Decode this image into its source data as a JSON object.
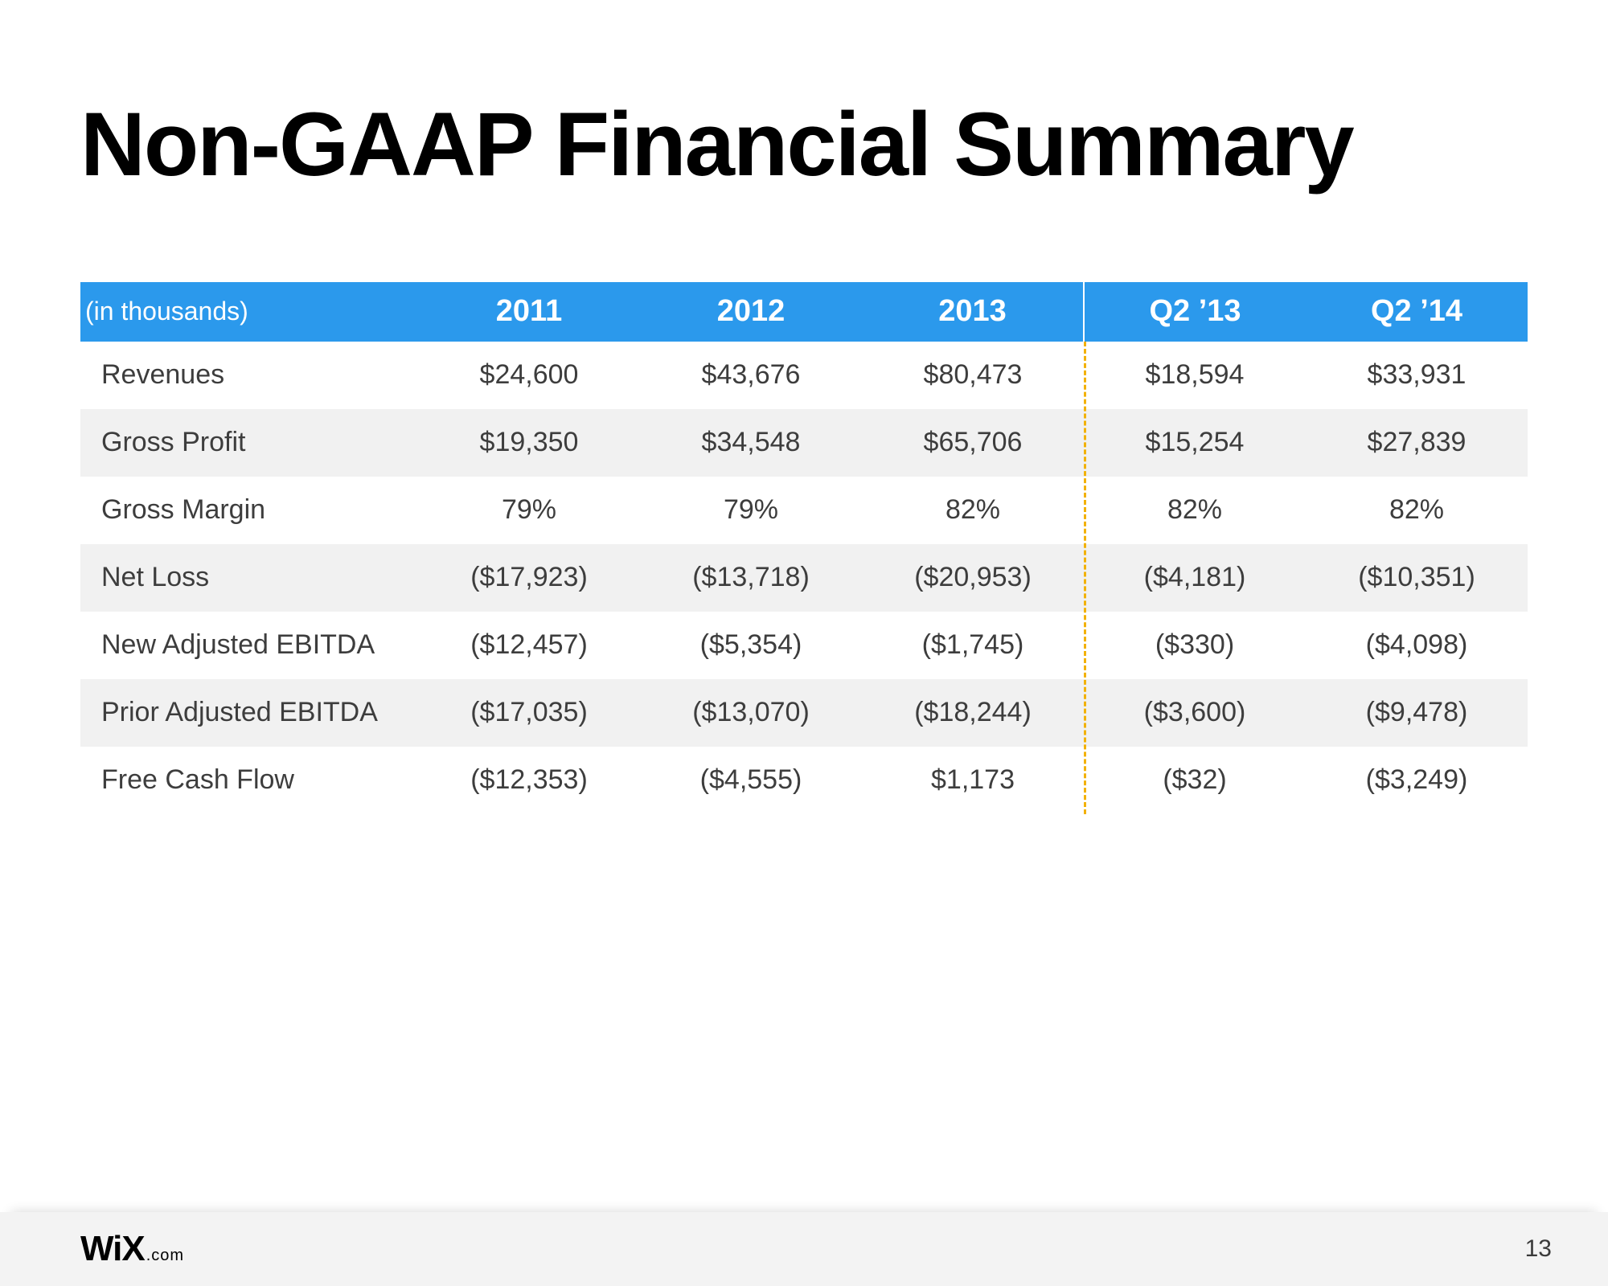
{
  "title": "Non-GAAP Financial Summary",
  "table": {
    "unit_note": "(in thousands)",
    "header_bg": "#2b99ec",
    "header_fg": "#ffffff",
    "row_shade_bg": "#f1f1f1",
    "row_plain_bg": "#ffffff",
    "divider_color": "#f2b100",
    "text_color": "#3d3d3d",
    "font_size_body": 34,
    "font_size_header": 38,
    "columns": [
      "2011",
      "2012",
      "2013",
      "Q2 ’13",
      "Q2 ’14"
    ],
    "rows": [
      {
        "label": "Revenues",
        "values": [
          "$24,600",
          "$43,676",
          "$80,473",
          "$18,594",
          "$33,931"
        ]
      },
      {
        "label": "Gross Profit",
        "values": [
          "$19,350",
          "$34,548",
          "$65,706",
          "$15,254",
          "$27,839"
        ]
      },
      {
        "label": "Gross Margin",
        "values": [
          "79%",
          "79%",
          "82%",
          "82%",
          "82%"
        ]
      },
      {
        "label": "Net Loss",
        "values": [
          "($17,923)",
          "($13,718)",
          "($20,953)",
          "($4,181)",
          "($10,351)"
        ]
      },
      {
        "label": "New Adjusted EBITDA",
        "values": [
          "($12,457)",
          "($5,354)",
          "($1,745)",
          "($330)",
          "($4,098)"
        ]
      },
      {
        "label": "Prior Adjusted EBITDA",
        "values": [
          "($17,035)",
          "($13,070)",
          "($18,244)",
          "($3,600)",
          "($9,478)"
        ]
      },
      {
        "label": "Free Cash Flow",
        "values": [
          "($12,353)",
          "($4,555)",
          "$1,173",
          "($32)",
          "($3,249)"
        ]
      }
    ]
  },
  "footer": {
    "logo_main": "WiX",
    "logo_suffix": ".com",
    "page_number": "13"
  }
}
